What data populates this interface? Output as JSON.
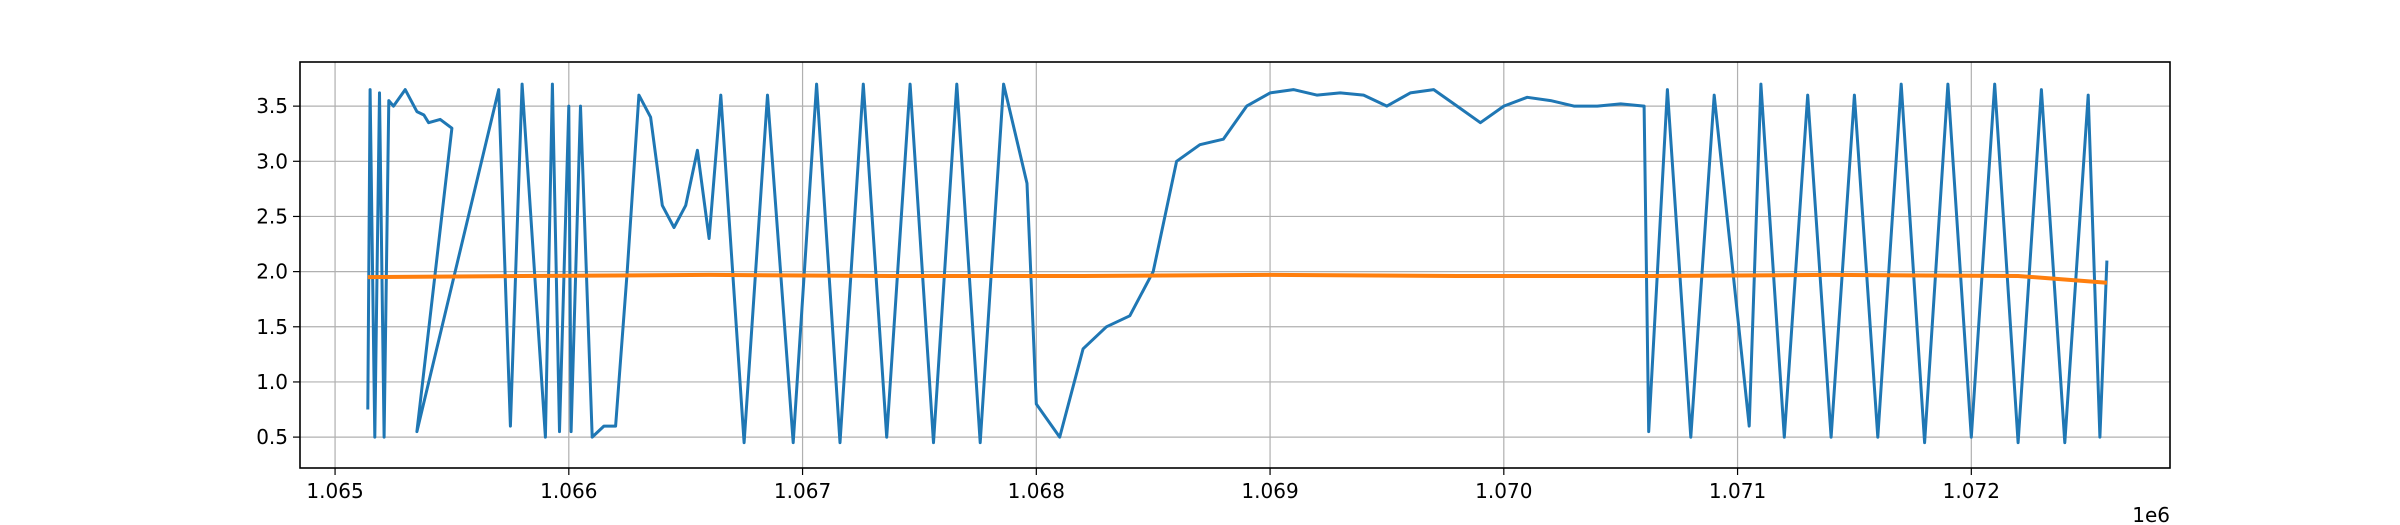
{
  "chart_data": {
    "type": "line",
    "title": "",
    "xlabel": "",
    "ylabel": "",
    "x_offset_text": "1e6",
    "xlim": [
      1.06485,
      1.07285
    ],
    "ylim": [
      0.22,
      3.9
    ],
    "grid": true,
    "x_ticks": [
      {
        "value": 1.065,
        "label": "1.065"
      },
      {
        "value": 1.066,
        "label": "1.066"
      },
      {
        "value": 1.067,
        "label": "1.067"
      },
      {
        "value": 1.068,
        "label": "1.068"
      },
      {
        "value": 1.069,
        "label": "1.069"
      },
      {
        "value": 1.07,
        "label": "1.070"
      },
      {
        "value": 1.071,
        "label": "1.071"
      },
      {
        "value": 1.072,
        "label": "1.072"
      }
    ],
    "y_ticks": [
      {
        "value": 0.5,
        "label": "0.5"
      },
      {
        "value": 1.0,
        "label": "1.0"
      },
      {
        "value": 1.5,
        "label": "1.5"
      },
      {
        "value": 2.0,
        "label": "2.0"
      },
      {
        "value": 2.5,
        "label": "2.5"
      },
      {
        "value": 3.0,
        "label": "3.0"
      },
      {
        "value": 3.5,
        "label": "3.5"
      }
    ],
    "series": [
      {
        "color": "#1f77b4",
        "x": [
          1.06514,
          1.06515,
          1.06517,
          1.06519,
          1.06521,
          1.06523,
          1.06525,
          1.0653,
          1.06535,
          1.06538,
          1.0654,
          1.06545,
          1.0655,
          1.06535,
          1.0657,
          1.06575,
          1.0658,
          1.0659,
          1.06593,
          1.06596,
          1.066,
          1.06601,
          1.06605,
          1.0661,
          1.06615,
          1.0662,
          1.06625,
          1.0663,
          1.06635,
          1.0664,
          1.06645,
          1.0665,
          1.06655,
          1.0666,
          1.06665,
          1.06675,
          1.06685,
          1.06696,
          1.06706,
          1.06716,
          1.06726,
          1.06736,
          1.06746,
          1.06756,
          1.06766,
          1.06776,
          1.06786,
          1.06796,
          1.068,
          1.0681,
          1.0682,
          1.0683,
          1.0684,
          1.0685,
          1.0686,
          1.0687,
          1.0688,
          1.0689,
          1.069,
          1.0691,
          1.0692,
          1.0693,
          1.0694,
          1.0695,
          1.0696,
          1.0697,
          1.0698,
          1.0699,
          1.07,
          1.0701,
          1.0702,
          1.0703,
          1.0704,
          1.0705,
          1.0706,
          1.07062,
          1.0707,
          1.0708,
          1.0709,
          1.071,
          1.07105,
          1.0711,
          1.0712,
          1.0713,
          1.0714,
          1.0715,
          1.0716,
          1.0717,
          1.0718,
          1.0719,
          1.072,
          1.0721,
          1.0722,
          1.0723,
          1.0724,
          1.0725,
          1.07255,
          1.07258
        ],
        "y": [
          0.75,
          3.65,
          0.5,
          3.62,
          0.5,
          3.55,
          3.5,
          3.65,
          3.45,
          3.42,
          3.35,
          3.38,
          3.3,
          0.55,
          3.65,
          0.6,
          3.7,
          0.5,
          3.7,
          0.55,
          3.5,
          0.55,
          3.5,
          0.5,
          0.6,
          0.6,
          2.0,
          3.6,
          3.4,
          2.6,
          2.4,
          2.6,
          3.1,
          2.3,
          3.6,
          0.45,
          3.6,
          0.45,
          3.7,
          0.45,
          3.7,
          0.5,
          3.7,
          0.45,
          3.7,
          0.45,
          3.7,
          2.8,
          0.8,
          0.5,
          1.3,
          1.5,
          1.6,
          2.0,
          3.0,
          3.15,
          3.2,
          3.5,
          3.62,
          3.65,
          3.6,
          3.62,
          3.6,
          3.5,
          3.62,
          3.65,
          3.5,
          3.35,
          3.5,
          3.58,
          3.55,
          3.5,
          3.5,
          3.52,
          3.5,
          0.55,
          3.65,
          0.5,
          3.6,
          1.6,
          0.6,
          3.7,
          0.5,
          3.6,
          0.5,
          3.6,
          0.5,
          3.7,
          0.45,
          3.7,
          0.5,
          3.7,
          0.45,
          3.65,
          0.45,
          3.6,
          0.5,
          2.1
        ]
      },
      {
        "color": "#ff7f0e",
        "x": [
          1.06514,
          1.0658,
          1.0666,
          1.0674,
          1.0682,
          1.069,
          1.0698,
          1.0706,
          1.0714,
          1.0722,
          1.07258
        ],
        "y": [
          1.95,
          1.96,
          1.97,
          1.96,
          1.96,
          1.97,
          1.96,
          1.96,
          1.97,
          1.96,
          1.9
        ]
      }
    ]
  }
}
